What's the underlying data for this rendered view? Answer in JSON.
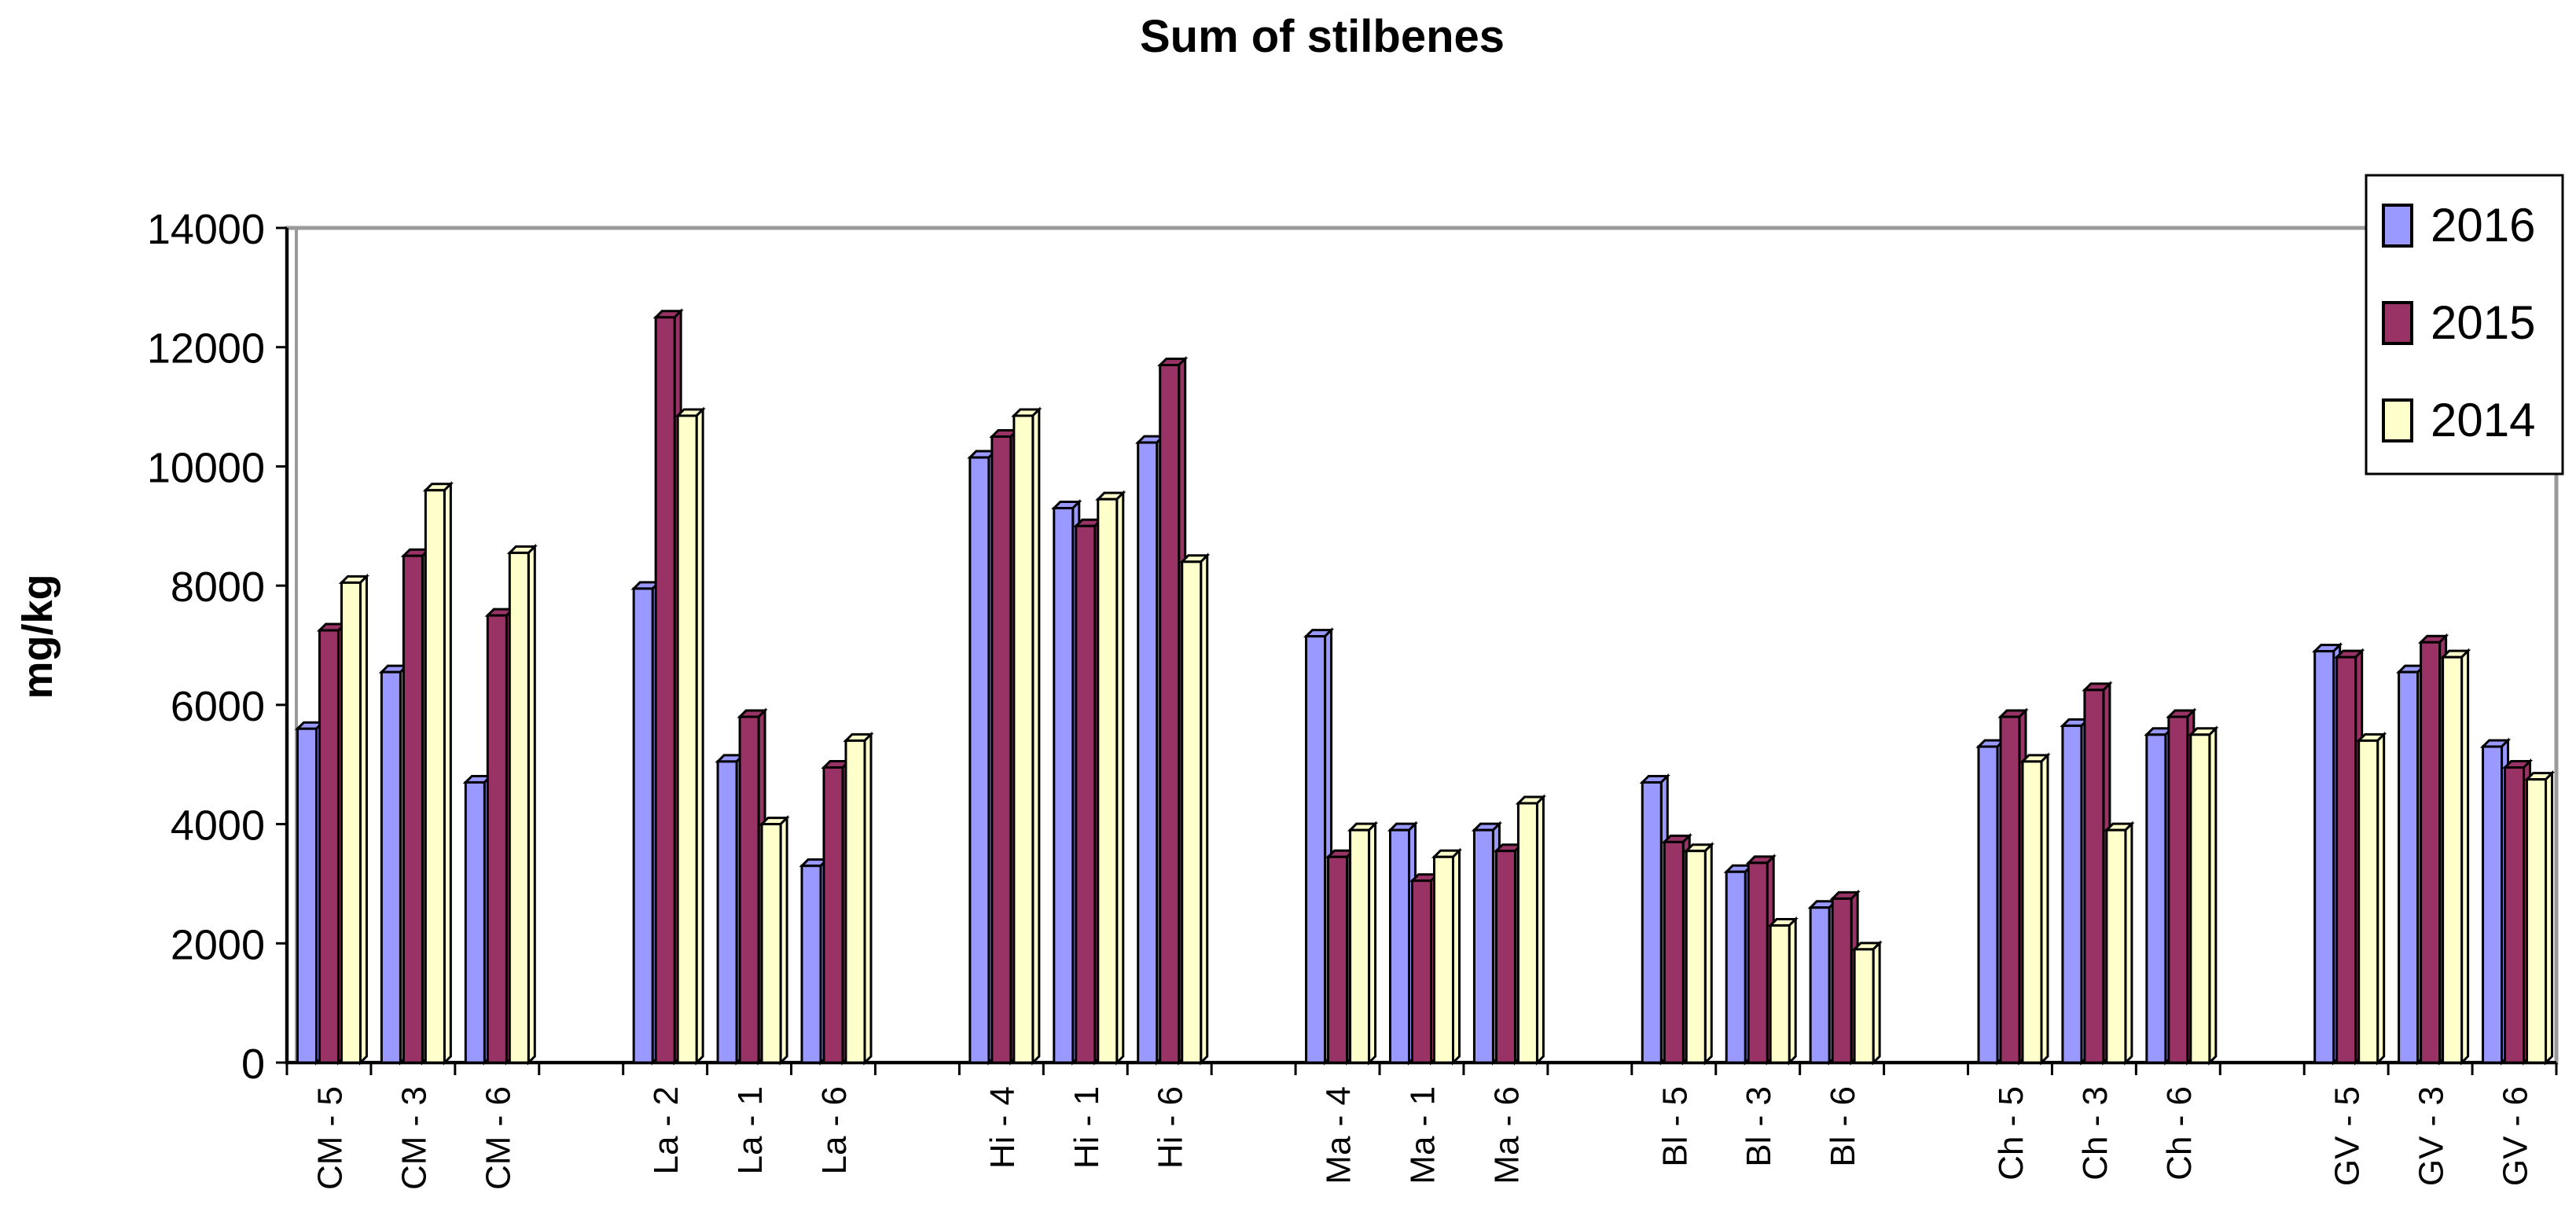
{
  "chart_data": {
    "type": "bar",
    "title": "Sum of stilbenes",
    "ylabel": "mg/kg",
    "xlabel": "",
    "ylim": [
      0,
      14000
    ],
    "yticks": [
      0,
      2000,
      4000,
      6000,
      8000,
      10000,
      12000,
      14000
    ],
    "grid": true,
    "legend_position": "top-right",
    "categories": [
      "CM - 5",
      "CM - 3",
      "CM - 6",
      "",
      "La - 2",
      "La - 1",
      "La - 6",
      "",
      "Hi - 4",
      "Hi - 1",
      "Hi - 6",
      "",
      "Ma - 4",
      "Ma - 1",
      "Ma - 6",
      "",
      "Bl - 5",
      "Bl - 3",
      "Bl - 6",
      "",
      "Ch - 5",
      "Ch - 3",
      "Ch - 6",
      "",
      "GV - 5",
      "GV - 3",
      "GV - 6"
    ],
    "series": [
      {
        "name": "2016",
        "color": "#9999ff",
        "values": [
          5600,
          6550,
          4700,
          null,
          7950,
          5050,
          3300,
          null,
          10150,
          9300,
          10400,
          null,
          7150,
          3900,
          3900,
          null,
          4700,
          3200,
          2600,
          null,
          5300,
          5650,
          5500,
          null,
          6900,
          6550,
          5300
        ]
      },
      {
        "name": "2015",
        "color": "#993366",
        "values": [
          7250,
          8500,
          7500,
          null,
          12500,
          5800,
          4950,
          null,
          10500,
          9000,
          11700,
          null,
          3450,
          3050,
          3550,
          null,
          3700,
          3350,
          2750,
          null,
          5800,
          6250,
          5800,
          null,
          6800,
          7050,
          4950
        ]
      },
      {
        "name": "2014",
        "color": "#ffffcc",
        "values": [
          8050,
          9600,
          8550,
          null,
          10850,
          4000,
          5400,
          null,
          10850,
          9450,
          8400,
          null,
          3900,
          3450,
          4350,
          null,
          3550,
          2300,
          1900,
          null,
          5050,
          3900,
          5500,
          null,
          5400,
          6800,
          4750
        ]
      }
    ]
  }
}
